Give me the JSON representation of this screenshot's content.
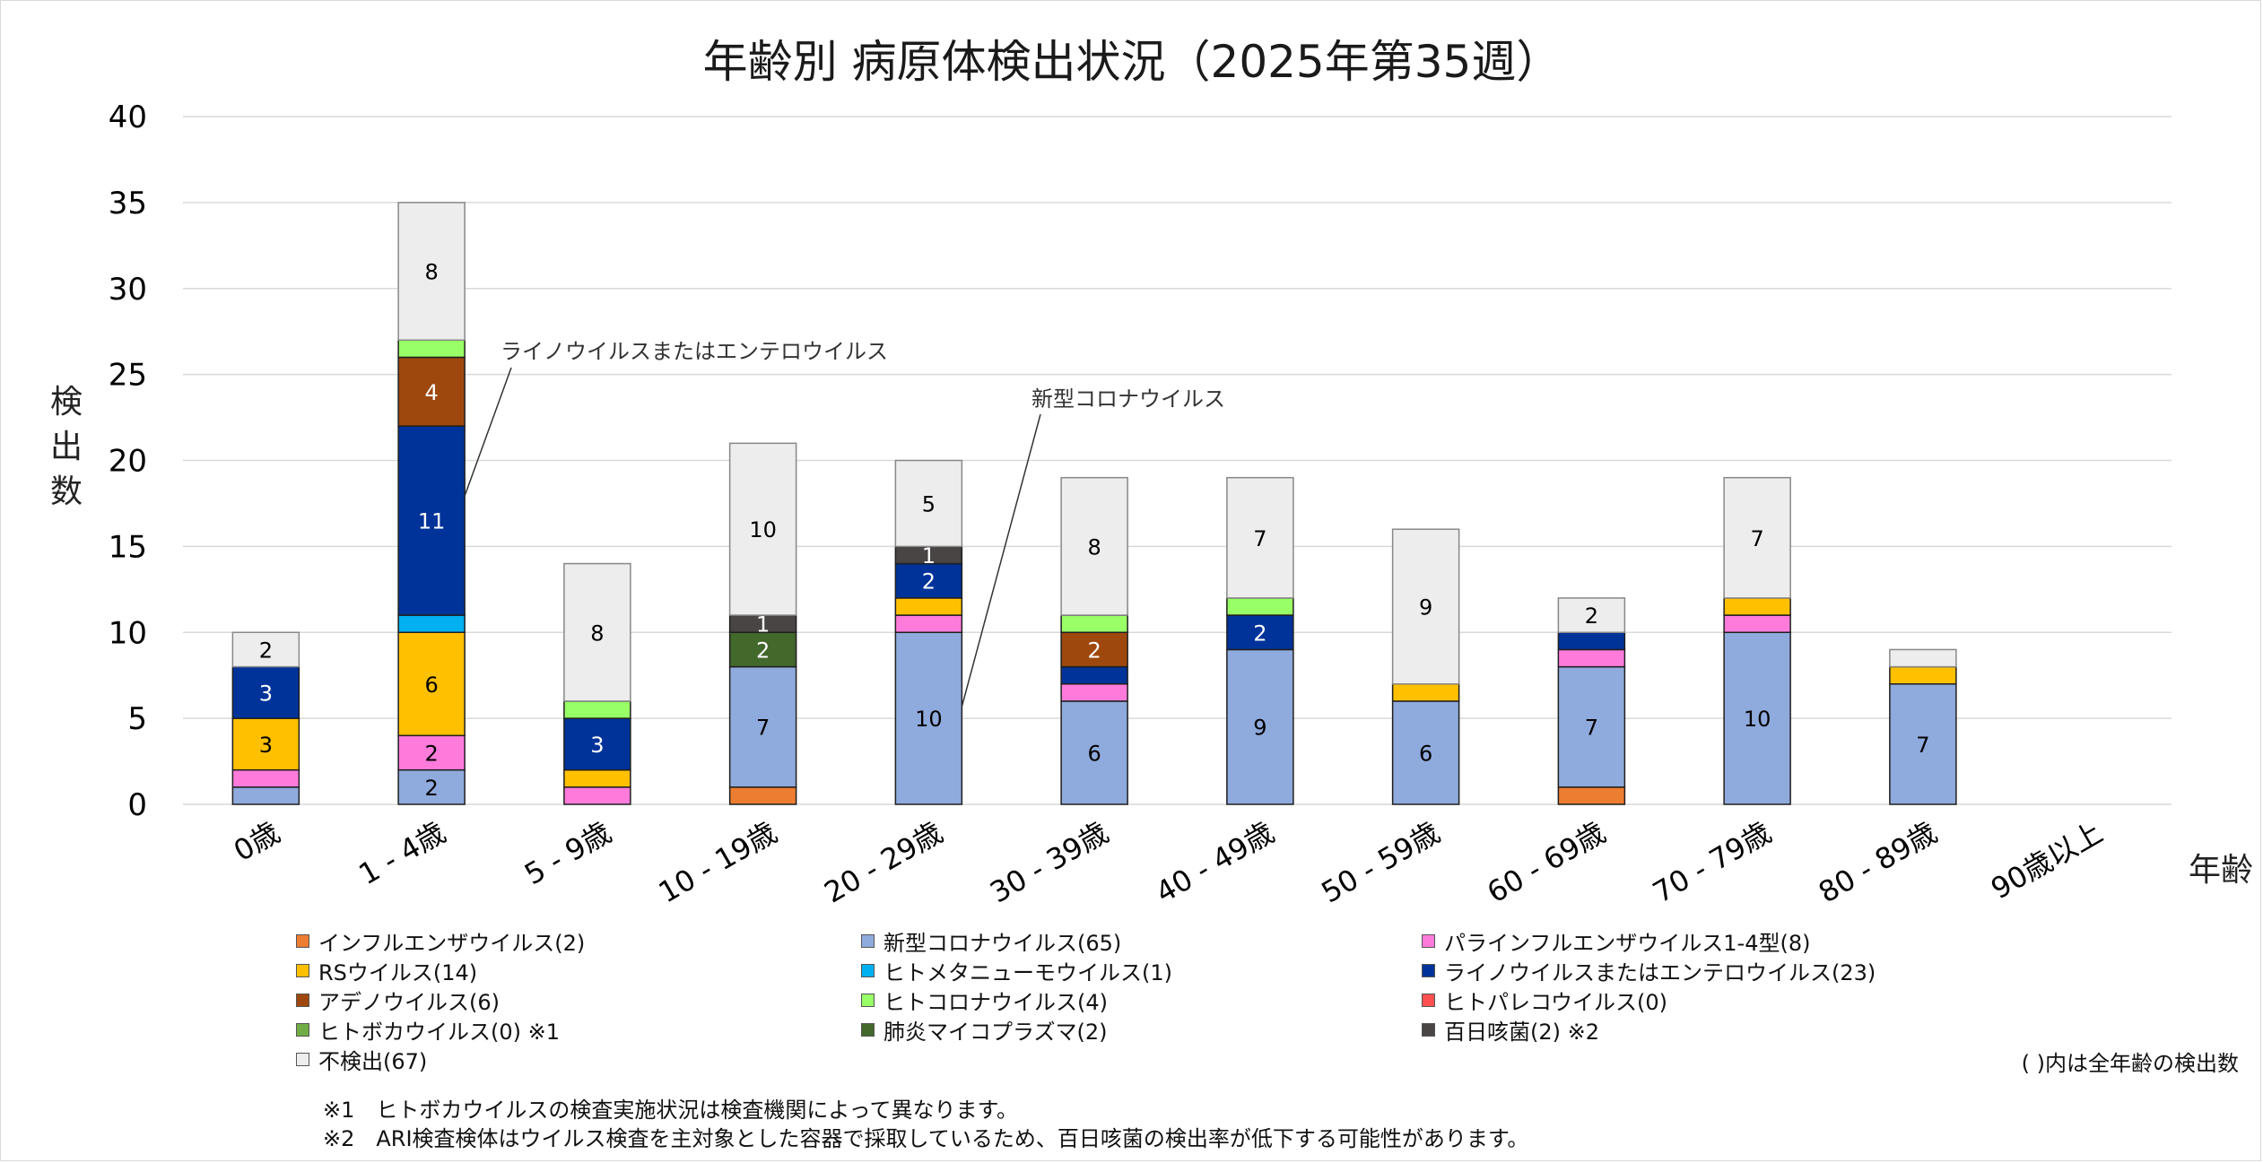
{
  "chart_data": {
    "type": "bar",
    "stacked": true,
    "title": "年齢別 病原体検出状況（2025年第35週）",
    "xlabel": "年齢",
    "ylabel": "検出数",
    "ylim": [
      0,
      40
    ],
    "yticks": [
      0,
      5,
      10,
      15,
      20,
      25,
      30,
      35,
      40
    ],
    "grid": true,
    "legend_position": "bottom",
    "categories": [
      "0歳",
      "1 - 4歳",
      "5 - 9歳",
      "10 - 19歳",
      "20 - 29歳",
      "30 - 39歳",
      "40 - 49歳",
      "50 - 59歳",
      "60 - 69歳",
      "70 - 79歳",
      "80 - 89歳",
      "90歳以上"
    ],
    "series": [
      {
        "name": "インフルエンザウイルス",
        "legend": "インフルエンザウイルス(2)",
        "color": "#ED7D31",
        "label_color": "#000000",
        "values": [
          0,
          0,
          0,
          1,
          0,
          0,
          0,
          0,
          1,
          0,
          0,
          0
        ]
      },
      {
        "name": "新型コロナウイルス",
        "legend": "新型コロナウイルス(65)",
        "color": "#8FAADC",
        "label_color": "#000000",
        "values": [
          1,
          2,
          0,
          7,
          10,
          6,
          9,
          6,
          7,
          10,
          7,
          0
        ]
      },
      {
        "name": "パラインフルエンザウイルス1-4型",
        "legend": "パラインフルエンザウイルス1-4型(8)",
        "color": "#FF7BDB",
        "label_color": "#000000",
        "values": [
          1,
          2,
          1,
          0,
          1,
          1,
          0,
          0,
          1,
          1,
          0,
          0
        ]
      },
      {
        "name": "RSウイルス",
        "legend": "RSウイルス(14)",
        "color": "#FFC000",
        "label_color": "#000000",
        "values": [
          3,
          6,
          1,
          0,
          1,
          0,
          0,
          1,
          0,
          1,
          1,
          0
        ]
      },
      {
        "name": "ヒトメタニューモウイルス",
        "legend": "ヒトメタニューモウイルス(1)",
        "color": "#00B0F0",
        "label_color": "#000000",
        "values": [
          0,
          1,
          0,
          0,
          0,
          0,
          0,
          0,
          0,
          0,
          0,
          0
        ]
      },
      {
        "name": "ライノウイルスまたはエンテロウイルス",
        "legend": "ライノウイルスまたはエンテロウイルス(23)",
        "color": "#003399",
        "label_color": "#FFFFFF",
        "values": [
          3,
          11,
          3,
          0,
          2,
          1,
          2,
          0,
          1,
          0,
          0,
          0
        ]
      },
      {
        "name": "アデノウイルス",
        "legend": "アデノウイルス(6)",
        "color": "#9E480E",
        "label_color": "#FFFFFF",
        "values": [
          0,
          4,
          0,
          0,
          0,
          2,
          0,
          0,
          0,
          0,
          0,
          0
        ]
      },
      {
        "name": "ヒトコロナウイルス",
        "legend": "ヒトコロナウイルス(4)",
        "color": "#99FF66",
        "label_color": "#000000",
        "values": [
          0,
          1,
          1,
          0,
          0,
          1,
          1,
          0,
          0,
          0,
          0,
          0
        ]
      },
      {
        "name": "ヒトパレコウイルス",
        "legend": "ヒトパレコウイルス(0)",
        "color": "#FF5050",
        "label_color": "#000000",
        "values": [
          0,
          0,
          0,
          0,
          0,
          0,
          0,
          0,
          0,
          0,
          0,
          0
        ]
      },
      {
        "name": "ヒトボカウイルス",
        "legend": "ヒトボカウイルス(0) ※1",
        "color": "#70AD47",
        "label_color": "#000000",
        "values": [
          0,
          0,
          0,
          0,
          0,
          0,
          0,
          0,
          0,
          0,
          0,
          0
        ]
      },
      {
        "name": "肺炎マイコプラズマ",
        "legend": "肺炎マイコプラズマ(2)",
        "color": "#43682B",
        "label_color": "#FFFFFF",
        "values": [
          0,
          0,
          0,
          2,
          0,
          0,
          0,
          0,
          0,
          0,
          0,
          0
        ]
      },
      {
        "name": "百日咳菌",
        "legend": "百日咳菌(2) ※2",
        "color": "#4A4545",
        "label_color": "#FFFFFF",
        "values": [
          0,
          0,
          0,
          1,
          1,
          0,
          0,
          0,
          0,
          0,
          0,
          0
        ]
      },
      {
        "name": "不検出",
        "legend": "不検出(67)",
        "color": "#EDEDED",
        "label_color": "#000000",
        "values": [
          2,
          8,
          8,
          10,
          5,
          8,
          7,
          9,
          2,
          7,
          1,
          0
        ]
      }
    ],
    "data_labels_min_value": 2,
    "data_labels_extra": [
      {
        "series": "百日咳菌",
        "category": "10 - 19歳",
        "value": 1
      },
      {
        "series": "百日咳菌",
        "category": "20 - 29歳",
        "value": 1
      }
    ],
    "annotations": [
      {
        "text": "ライノウイルスまたはエンテロウイルス",
        "points_to": {
          "series": "ライノウイルスまたはエンテロウイルス",
          "category": "1 - 4歳"
        }
      },
      {
        "text": "新型コロナウイルス",
        "points_to": {
          "series": "新型コロナウイルス",
          "category": "20 - 29歳"
        }
      }
    ]
  },
  "legend_order": [
    [
      "インフルエンザウイルス",
      "新型コロナウイルス",
      "パラインフルエンザウイルス1-4型"
    ],
    [
      "RSウイルス",
      "ヒトメタニューモウイルス",
      "ライノウイルスまたはエンテロウイルス"
    ],
    [
      "アデノウイルス",
      "ヒトコロナウイルス",
      "ヒトパレコウイルス"
    ],
    [
      "ヒトボカウイルス",
      "肺炎マイコプラズマ",
      "百日咳菌"
    ],
    [
      "不検出"
    ]
  ],
  "legend_note": "( )内は全年齢の検出数",
  "footnotes": [
    "※1　ヒトボカウイルスの検査実施状況は検査機関によって異なります。",
    "※2　ARI検査検体はウイルス検査を主対象とした容器で採取しているため、百日咳菌の検出率が低下する可能性があります。"
  ]
}
